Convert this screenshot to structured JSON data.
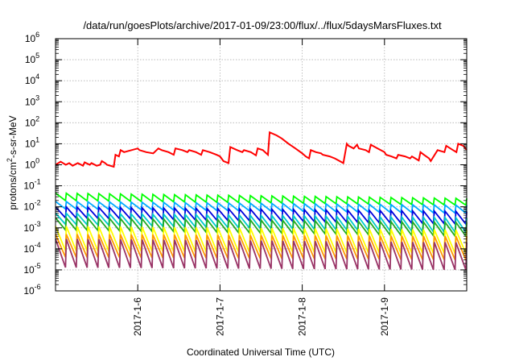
{
  "chart_data": {
    "type": "line",
    "title": "/data/run/goesPlots/archive/2017-01-09/23:00/flux/../flux/5daysMarsFluxes.txt",
    "xlabel": "Coordinated Universal Time (UTC)",
    "ylabel_prefix": "protons/cm",
    "ylabel_sup": "2",
    "ylabel_suffix": "-s-sr-MeV",
    "y_scale": "log",
    "ylim": [
      1e-06,
      1000000.0
    ],
    "xlim": [
      "2017-01-05T00:00",
      "2017-01-10T00:00"
    ],
    "x_ticks": [
      "2017-1-6",
      "2017-1-7",
      "2017-1-8",
      "2017-1-9"
    ],
    "y_ticks": [
      {
        "base": "10",
        "exp": "-6"
      },
      {
        "base": "10",
        "exp": "-5"
      },
      {
        "base": "10",
        "exp": "-4"
      },
      {
        "base": "10",
        "exp": "-3"
      },
      {
        "base": "10",
        "exp": "-2"
      },
      {
        "base": "10",
        "exp": "-1"
      },
      {
        "base": "10",
        "exp": "0"
      },
      {
        "base": "10",
        "exp": "1"
      },
      {
        "base": "10",
        "exp": "2"
      },
      {
        "base": "10",
        "exp": "3"
      },
      {
        "base": "10",
        "exp": "4"
      },
      {
        "base": "10",
        "exp": "5"
      },
      {
        "base": "10",
        "exp": "6"
      }
    ],
    "grid": true,
    "series": [
      {
        "color": "#ff0000",
        "x": [
          "2017-01-05T00:00",
          "2017-01-05T01:30",
          "2017-01-05T03:00",
          "2017-01-05T04:00",
          "2017-01-05T05:00",
          "2017-01-05T06:30",
          "2017-01-05T08:00",
          "2017-01-05T08:30",
          "2017-01-05T10:00",
          "2017-01-05T10:30",
          "2017-01-05T12:00",
          "2017-01-05T13:00",
          "2017-01-05T13:30",
          "2017-01-05T14:30",
          "2017-01-05T15:00",
          "2017-01-05T17:00",
          "2017-01-05T17:30",
          "2017-01-05T18:30",
          "2017-01-05T19:00",
          "2017-01-05T20:00",
          "2017-01-06T00:00",
          "2017-01-06T00:30",
          "2017-01-06T02:30",
          "2017-01-06T04:30",
          "2017-01-06T06:00",
          "2017-01-06T07:00",
          "2017-01-06T09:00",
          "2017-01-06T10:30",
          "2017-01-06T11:00",
          "2017-01-06T13:00",
          "2017-01-06T14:30",
          "2017-01-06T15:00",
          "2017-01-06T17:00",
          "2017-01-06T18:30",
          "2017-01-06T19:00",
          "2017-01-06T21:00",
          "2017-01-06T23:00",
          "2017-01-07T00:00",
          "2017-01-07T01:00",
          "2017-01-07T02:30",
          "2017-01-07T03:00",
          "2017-01-07T05:00",
          "2017-01-07T06:30",
          "2017-01-07T07:00",
          "2017-01-07T09:00",
          "2017-01-07T10:30",
          "2017-01-07T11:00",
          "2017-01-07T12:30",
          "2017-01-07T14:00",
          "2017-01-07T14:30",
          "2017-01-07T16:30",
          "2017-01-07T18:00",
          "2017-01-07T20:00",
          "2017-01-07T22:00",
          "2017-01-08T00:00",
          "2017-01-08T01:00",
          "2017-01-08T02:00",
          "2017-01-08T02:30",
          "2017-01-08T04:00",
          "2017-01-08T05:30",
          "2017-01-08T06:00",
          "2017-01-08T08:00",
          "2017-01-08T09:30",
          "2017-01-08T10:00",
          "2017-01-08T12:00",
          "2017-01-08T13:00",
          "2017-01-08T13:30",
          "2017-01-08T15:00",
          "2017-01-08T16:00",
          "2017-01-08T16:30",
          "2017-01-08T18:30",
          "2017-01-08T19:30",
          "2017-01-08T20:00",
          "2017-01-08T22:00",
          "2017-01-09T00:00",
          "2017-01-09T00:30",
          "2017-01-09T02:00",
          "2017-01-09T03:30",
          "2017-01-09T04:00",
          "2017-01-09T06:00",
          "2017-01-09T07:30",
          "2017-01-09T08:00",
          "2017-01-09T09:00",
          "2017-01-09T10:00",
          "2017-01-09T10:30",
          "2017-01-09T11:30",
          "2017-01-09T13:00",
          "2017-01-09T13:30",
          "2017-01-09T15:30",
          "2017-01-09T17:30",
          "2017-01-09T18:00",
          "2017-01-09T20:00",
          "2017-01-09T21:00",
          "2017-01-09T21:30",
          "2017-01-09T23:00",
          "2017-01-10T00:00"
        ],
        "y": [
          1.0,
          1.4,
          1.0,
          1.2,
          0.9,
          1.2,
          0.9,
          1.3,
          1.0,
          1.2,
          0.9,
          1.0,
          1.5,
          1.2,
          1.0,
          0.8,
          3.0,
          2.5,
          5.0,
          4.0,
          6.0,
          5.0,
          4.0,
          3.5,
          6.0,
          5.0,
          4.0,
          3.0,
          6.0,
          5.0,
          4.0,
          5.0,
          4.0,
          3.0,
          5.0,
          4.0,
          3.0,
          2.5,
          1.5,
          1.2,
          7.0,
          5.0,
          4.0,
          5.0,
          4.0,
          2.8,
          6.0,
          5.0,
          3.0,
          35.0,
          25.0,
          18.0,
          10.0,
          6.0,
          3.5,
          2.5,
          2.0,
          5.0,
          4.0,
          3.5,
          3.0,
          2.5,
          2.0,
          1.8,
          1.2,
          10.0,
          8.0,
          6.0,
          9.0,
          6.0,
          5.0,
          4.0,
          9.0,
          6.0,
          4.0,
          3.0,
          2.5,
          2.0,
          3.0,
          2.5,
          2.0,
          2.5,
          2.0,
          1.6,
          4.0,
          3.0,
          2.0,
          1.5,
          5.0,
          4.0,
          8.0,
          5.0,
          4.0,
          10.0,
          8.0,
          5.0
        ]
      },
      {
        "color": "#00ff00",
        "sawtooth": {
          "cycles": 38,
          "start": [
            0.045,
            0.02
          ],
          "end": [
            0.025,
            0.012
          ]
        }
      },
      {
        "color": "#00aaff",
        "sawtooth": {
          "cycles": 38,
          "start": [
            0.018,
            0.008
          ],
          "end": [
            0.012,
            0.005
          ]
        }
      },
      {
        "color": "#0000dd",
        "sawtooth": {
          "cycles": 38,
          "start": [
            0.01,
            0.003
          ],
          "end": [
            0.006,
            0.0015
          ]
        }
      },
      {
        "color": "#00cccc",
        "sawtooth": {
          "cycles": 38,
          "start": [
            0.005,
            0.0015
          ],
          "end": [
            0.003,
            0.0006
          ]
        }
      },
      {
        "color": "#22aa22",
        "sawtooth": {
          "cycles": 38,
          "start": [
            0.003,
            0.0008
          ],
          "end": [
            0.0018,
            0.0004
          ]
        }
      },
      {
        "color": "#ffff00",
        "sawtooth": {
          "cycles": 38,
          "start": [
            0.0012,
            8e-05
          ],
          "end": [
            0.0008,
            6e-05
          ]
        }
      },
      {
        "color": "#ff9900",
        "sawtooth": {
          "cycles": 38,
          "start": [
            0.0005,
            4e-05
          ],
          "end": [
            0.0004,
            3e-05
          ]
        }
      },
      {
        "color": "#993366",
        "sawtooth": {
          "cycles": 38,
          "start": [
            0.0003,
            1.3e-05
          ],
          "end": [
            0.0002,
            1e-05
          ]
        }
      }
    ]
  }
}
